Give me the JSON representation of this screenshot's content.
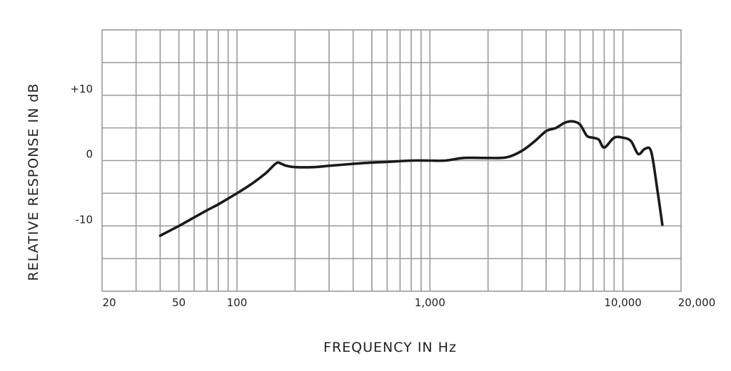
{
  "chart_data": {
    "type": "line",
    "xlabel": "FREQUENCY IN Hz",
    "ylabel": "RELATIVE RESPONSE IN dB",
    "x_scale": "log",
    "xlim": [
      20,
      20000
    ],
    "ylim": [
      -20,
      20
    ],
    "grid": true,
    "x_ticks": [
      20,
      50,
      100,
      1000,
      10000,
      20000
    ],
    "x_tick_labels": [
      "20",
      "50",
      "100",
      "1,000",
      "10,000",
      "20,000"
    ],
    "y_ticks": [
      10,
      0,
      -10
    ],
    "y_tick_labels": [
      "+10",
      "0",
      "-10"
    ],
    "series": [
      {
        "x": [
          40,
          50,
          60,
          70,
          80,
          100,
          120,
          140,
          160,
          170,
          180,
          200,
          250,
          300,
          400,
          500,
          600,
          800,
          1000,
          1200,
          1500,
          2000,
          2500,
          3000,
          3500,
          4000,
          4500,
          5000,
          5500,
          6000,
          6500,
          7000,
          7500,
          8000,
          9000,
          10000,
          11000,
          12000,
          13000,
          14000,
          15000,
          16000
        ],
        "y": [
          -11.5,
          -10,
          -8.7,
          -7.6,
          -6.7,
          -5,
          -3.5,
          -2,
          -0.4,
          -0.5,
          -0.8,
          -1,
          -1,
          -0.8,
          -0.5,
          -0.3,
          -0.2,
          0,
          0,
          0,
          0.4,
          0.4,
          0.5,
          1.5,
          3,
          4.5,
          5,
          5.8,
          6,
          5.5,
          3.8,
          3.5,
          3.2,
          2,
          3.5,
          3.5,
          3,
          1,
          1.8,
          1.4,
          -4,
          -9.8
        ]
      }
    ]
  }
}
